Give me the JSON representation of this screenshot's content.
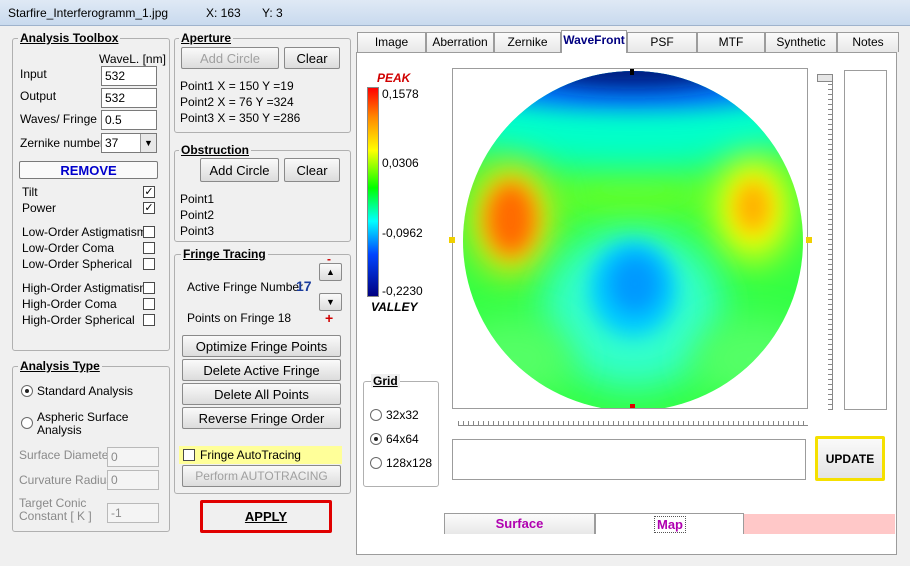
{
  "window": {
    "title": "Starfire_Interferogramm_1.jpg",
    "x_coord": "X: 163",
    "y_coord": "Y: 3"
  },
  "toolbox": {
    "title": "Analysis Toolbox",
    "wavel_header": "WaveL. [nm]",
    "input_label": "Input",
    "input_value": "532",
    "output_label": "Output",
    "output_value": "532",
    "waves_label": "Waves/ Fringe",
    "waves_value": "0.5",
    "zernike_label": "Zernike number",
    "zernike_value": "37",
    "remove_label": "REMOVE",
    "terms": [
      {
        "label": "Tilt",
        "checked": true
      },
      {
        "label": "Power",
        "checked": true
      },
      {
        "label": "Low-Order  Astigmatism",
        "checked": false
      },
      {
        "label": "Low-Order  Coma",
        "checked": false
      },
      {
        "label": "Low-Order  Spherical",
        "checked": false
      },
      {
        "label": "High-Order  Astigmatism",
        "checked": false
      },
      {
        "label": "High-Order  Coma",
        "checked": false
      },
      {
        "label": "High-Order  Spherical",
        "checked": false
      }
    ]
  },
  "analysis_type": {
    "title": "Analysis Type",
    "standard": "Standard Analysis",
    "aspheric_1": "Aspheric  Surface",
    "aspheric_2": "Analysis",
    "surface_diameter_label": "Surface Diameter",
    "surface_diameter_value": "0",
    "curvature_radius_label": "Curvature Radius",
    "curvature_radius_value": "0",
    "target_conic_label_1": "Target Conic",
    "target_conic_label_2": "Constant [ K ]",
    "target_conic_value": "-1"
  },
  "aperture": {
    "title": "Aperture",
    "add_circle": "Add Circle",
    "clear": "Clear",
    "points": [
      "Point1  X =    150   Y =19",
      "Point2  X =   76   Y =324",
      "Point3  X =   350   Y =286"
    ]
  },
  "obstruction": {
    "title": "Obstruction",
    "add_circle": "Add Circle",
    "clear": "Clear",
    "points": [
      "Point1",
      "Point2",
      "Point3"
    ]
  },
  "fringe_tracing": {
    "title": "Fringe Tracing",
    "active_label": "Active Fringe Number",
    "active_value": "17",
    "points_label": "Points on  Fringe 18",
    "minus": "-",
    "plus": "+",
    "optimize": "Optimize Fringe Points",
    "delete_active": "Delete Active Fringe",
    "delete_all": "Delete  All  Points",
    "reverse": "Reverse  Fringe Order",
    "autotracing_label": "Fringe AutoTracing",
    "perform": "Perform  AUTOTRACING"
  },
  "apply_label": "APPLY",
  "tabs": [
    "Image",
    "Aberration",
    "Zernike",
    "WaveFront",
    "PSF",
    "MTF",
    "Synthetic",
    "Notes"
  ],
  "active_tab": "WaveFront",
  "scale": {
    "peak": "PEAK",
    "valley": "VALLEY",
    "v1": "0,1578",
    "v2": "0,0306",
    "v3": "-0,0962",
    "v4": "-0,2230"
  },
  "grid": {
    "title": "Grid",
    "options": [
      "32x32",
      "64x64",
      "128x128"
    ],
    "selected": "64x64"
  },
  "update_label": "UPDATE",
  "bottom_tabs": {
    "surface": "Surface",
    "map": "Map"
  },
  "colors": {
    "apply_border": "#e00000",
    "update_border": "#f5e000",
    "remove_text": "#0000cc",
    "bottom_tab_text": "#b000b0",
    "peak_text": "#d00000"
  }
}
